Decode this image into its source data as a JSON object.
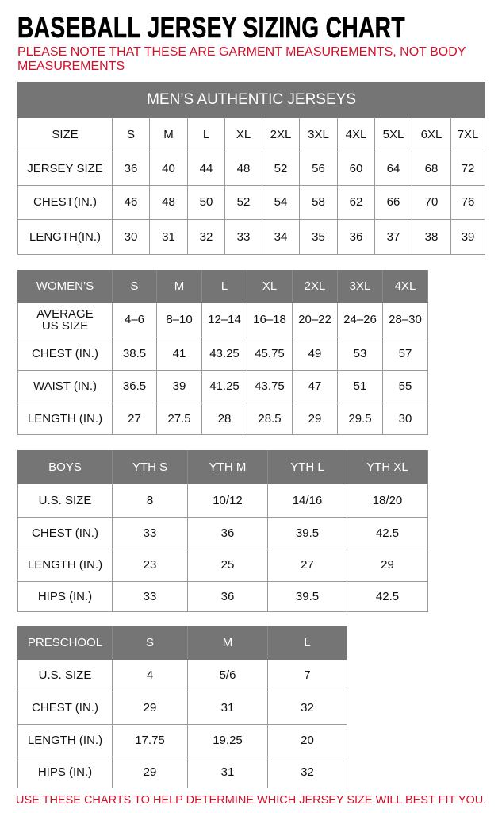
{
  "title": "BASEBALL JERSEY SIZING CHART",
  "note": "PLEASE NOTE THAT THESE ARE GARMENT MEASUREMENTS, NOT BODY MEASUREMENTS",
  "footer": "USE THESE CHARTS TO HELP DETERMINE WHICH JERSEY SIZE WILL BEST FIT YOU.",
  "colors": {
    "header_bg": "#757575",
    "accent_red": "#d2102a"
  },
  "tables": [
    {
      "caption": "MEN’S AUTHENTIC JERSEYS",
      "header": [
        "SIZE",
        "S",
        "M",
        "L",
        "XL",
        "2XL",
        "3XL",
        "4XL",
        "5XL",
        "6XL",
        "7XL"
      ],
      "header_style": "plain",
      "rows": [
        [
          "JERSEY SIZE",
          "36",
          "40",
          "44",
          "48",
          "52",
          "56",
          "60",
          "64",
          "68",
          "72"
        ],
        [
          "CHEST(IN.)",
          "46",
          "48",
          "50",
          "52",
          "54",
          "58",
          "62",
          "66",
          "70",
          "76"
        ],
        [
          "LENGTH(IN.)",
          "30",
          "31",
          "32",
          "33",
          "34",
          "35",
          "36",
          "37",
          "38",
          "39"
        ]
      ]
    },
    {
      "header": [
        "WOMEN’S",
        "S",
        "M",
        "L",
        "XL",
        "2XL",
        "3XL",
        "4XL"
      ],
      "rows": [
        [
          "AVERAGE US SIZE",
          "4–6",
          "8–10",
          "12–14",
          "16–18",
          "20–22",
          "24–26",
          "28–30"
        ],
        [
          "CHEST (IN.)",
          "38.5",
          "41",
          "43.25",
          "45.75",
          "49",
          "53",
          "57"
        ],
        [
          "WAIST (IN.)",
          "36.5",
          "39",
          "41.25",
          "43.75",
          "47",
          "51",
          "55"
        ],
        [
          "LENGTH (IN.)",
          "27",
          "27.5",
          "28",
          "28.5",
          "29",
          "29.5",
          "30"
        ]
      ]
    },
    {
      "header": [
        "BOYS",
        "YTH S",
        "YTH M",
        "YTH L",
        "YTH XL"
      ],
      "rows": [
        [
          "U.S. SIZE",
          "8",
          "10/12",
          "14/16",
          "18/20"
        ],
        [
          "CHEST (IN.)",
          "33",
          "36",
          "39.5",
          "42.5"
        ],
        [
          "LENGTH (IN.)",
          "23",
          "25",
          "27",
          "29"
        ],
        [
          "HIPS (IN.)",
          "33",
          "36",
          "39.5",
          "42.5"
        ]
      ]
    },
    {
      "header": [
        "PRESCHOOL",
        "S",
        "M",
        "L"
      ],
      "rows": [
        [
          "U.S. SIZE",
          "4",
          "5/6",
          "7"
        ],
        [
          "CHEST (IN.)",
          "29",
          "31",
          "32"
        ],
        [
          "LENGTH (IN.)",
          "17.75",
          "19.25",
          "20"
        ],
        [
          "HIPS (IN.)",
          "29",
          "31",
          "32"
        ]
      ]
    }
  ]
}
